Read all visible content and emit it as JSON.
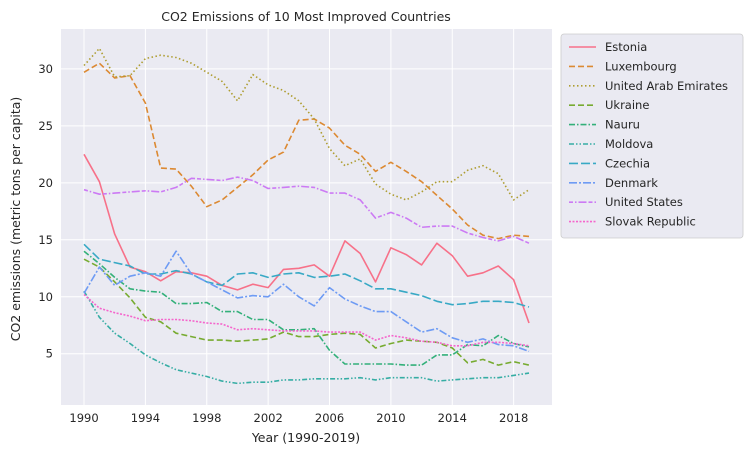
{
  "chart_data": {
    "type": "line",
    "title": "CO2 Emissions of 10 Most Improved Countries",
    "xlabel": "Year (1990-2019)",
    "ylabel": "CO2 emissions (metric tons per capita)",
    "xlim": [
      1988.5,
      2020.5
    ],
    "ylim": [
      0.5,
      33.5
    ],
    "xticks": [
      1990,
      1994,
      1998,
      2002,
      2006,
      2010,
      2014,
      2018
    ],
    "yticks": [
      5,
      10,
      15,
      20,
      25,
      30
    ],
    "grid": true,
    "legend_position": "outside-right",
    "background": "#eaeaf2",
    "x": [
      1990,
      1991,
      1992,
      1993,
      1994,
      1995,
      1996,
      1997,
      1998,
      1999,
      2000,
      2001,
      2002,
      2003,
      2004,
      2005,
      2006,
      2007,
      2008,
      2009,
      2010,
      2011,
      2012,
      2013,
      2014,
      2015,
      2016,
      2017,
      2018,
      2019
    ],
    "series": [
      {
        "name": "Estonia",
        "color": "#f77189",
        "dash": "solid",
        "values": [
          22.5,
          20.1,
          15.5,
          12.6,
          12.2,
          11.4,
          12.2,
          12.1,
          11.8,
          11.0,
          10.6,
          11.1,
          10.8,
          12.4,
          12.5,
          12.8,
          11.8,
          14.9,
          13.8,
          11.3,
          14.3,
          13.7,
          12.8,
          14.7,
          13.6,
          11.8,
          12.1,
          12.7,
          11.5,
          7.7
        ]
      },
      {
        "name": "Luxembourg",
        "color": "#dc8932",
        "dash": "dashed",
        "values": [
          29.7,
          30.5,
          29.2,
          29.4,
          27.0,
          21.3,
          21.2,
          19.7,
          17.9,
          18.5,
          19.6,
          20.7,
          22.0,
          22.7,
          25.5,
          25.6,
          24.8,
          23.3,
          22.5,
          21.0,
          21.8,
          21.0,
          20.1,
          18.9,
          17.7,
          16.3,
          15.4,
          15.1,
          15.4,
          15.3
        ]
      },
      {
        "name": "United Arab Emirates",
        "color": "#ae9d31",
        "dash": "dotted",
        "values": [
          30.3,
          31.8,
          29.3,
          29.4,
          30.9,
          31.2,
          31.0,
          30.5,
          29.7,
          28.9,
          27.2,
          29.5,
          28.6,
          28.1,
          27.2,
          25.6,
          23.0,
          21.5,
          22.1,
          19.9,
          19.0,
          18.5,
          19.2,
          20.1,
          20.1,
          21.1,
          21.5,
          20.8,
          18.5,
          19.4
        ]
      },
      {
        "name": "Ukraine",
        "color": "#77ab31",
        "dash": "dashed",
        "values": [
          13.3,
          12.6,
          11.3,
          9.9,
          8.2,
          7.8,
          6.8,
          6.5,
          6.2,
          6.2,
          6.1,
          6.2,
          6.3,
          6.9,
          6.5,
          6.5,
          6.7,
          6.8,
          6.7,
          5.5,
          5.9,
          6.2,
          6.1,
          6.0,
          5.5,
          4.2,
          4.5,
          4.0,
          4.3,
          4.0
        ]
      },
      {
        "name": "Nauru",
        "color": "#33b07a",
        "dash": "dashdot",
        "values": [
          14.0,
          12.9,
          11.7,
          10.7,
          10.5,
          10.4,
          9.4,
          9.4,
          9.5,
          8.7,
          8.7,
          8.0,
          8.0,
          7.1,
          7.1,
          7.2,
          5.3,
          4.1,
          4.1,
          4.1,
          4.1,
          4.0,
          4.0,
          4.9,
          4.9,
          5.8,
          5.7,
          6.6,
          5.9,
          5.6
        ]
      },
      {
        "name": "Moldova",
        "color": "#36ada4",
        "dash": "dashdotdot",
        "values": [
          10.5,
          8.2,
          6.8,
          5.9,
          4.9,
          4.2,
          3.6,
          3.3,
          3.0,
          2.6,
          2.4,
          2.5,
          2.5,
          2.7,
          2.7,
          2.8,
          2.8,
          2.8,
          2.9,
          2.7,
          2.9,
          2.9,
          2.9,
          2.6,
          2.7,
          2.8,
          2.9,
          2.9,
          3.1,
          3.3
        ]
      },
      {
        "name": "Czechia",
        "color": "#38a9c5",
        "dash": "longdash",
        "values": [
          14.6,
          13.3,
          13.0,
          12.7,
          12.0,
          12.0,
          12.3,
          12.0,
          11.3,
          11.0,
          12.0,
          12.1,
          11.7,
          12.0,
          12.1,
          11.7,
          11.8,
          12.0,
          11.4,
          10.7,
          10.7,
          10.4,
          10.1,
          9.6,
          9.3,
          9.4,
          9.6,
          9.6,
          9.5,
          9.1
        ]
      },
      {
        "name": "Denmark",
        "color": "#6e9bf4",
        "dash": "longdashdot",
        "values": [
          10.3,
          12.6,
          11.0,
          11.8,
          12.1,
          11.8,
          14.0,
          12.0,
          11.3,
          10.6,
          9.9,
          10.1,
          10.0,
          11.1,
          10.0,
          9.2,
          10.8,
          9.8,
          9.2,
          8.7,
          8.7,
          7.8,
          6.9,
          7.2,
          6.4,
          6.0,
          6.3,
          5.8,
          5.7,
          5.2
        ]
      },
      {
        "name": "United States",
        "color": "#cc7af4",
        "dash": "dashdotlong",
        "values": [
          19.4,
          19.0,
          19.1,
          19.2,
          19.3,
          19.2,
          19.6,
          20.4,
          20.3,
          20.2,
          20.5,
          20.2,
          19.5,
          19.6,
          19.7,
          19.6,
          19.1,
          19.1,
          18.5,
          16.9,
          17.4,
          16.9,
          16.1,
          16.2,
          16.2,
          15.6,
          15.2,
          14.9,
          15.3,
          14.7
        ]
      },
      {
        "name": "Slovak Republic",
        "color": "#f565cc",
        "dash": "densedot",
        "values": [
          10.2,
          9.0,
          8.6,
          8.3,
          7.9,
          8.0,
          8.0,
          7.9,
          7.7,
          7.6,
          7.1,
          7.2,
          7.1,
          7.0,
          7.0,
          7.0,
          6.9,
          6.9,
          6.9,
          6.2,
          6.6,
          6.4,
          6.1,
          6.0,
          5.7,
          5.7,
          6.0,
          6.0,
          5.9,
          5.7
        ]
      }
    ]
  }
}
